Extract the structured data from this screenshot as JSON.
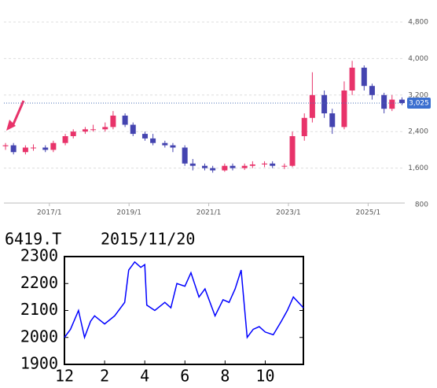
{
  "chart_data": [
    {
      "type": "candlestick",
      "x": [
        2015.9,
        2016.1,
        2016.4,
        2016.6,
        2016.9,
        2017.1,
        2017.4,
        2017.6,
        2017.9,
        2018.1,
        2018.4,
        2018.6,
        2018.9,
        2019.1,
        2019.4,
        2019.6,
        2019.9,
        2020.1,
        2020.4,
        2020.6,
        2020.9,
        2021.1,
        2021.4,
        2021.6,
        2021.9,
        2022.1,
        2022.4,
        2022.6,
        2022.9,
        2023.1,
        2023.4,
        2023.6,
        2023.9,
        2024.1,
        2024.4,
        2024.6,
        2024.9,
        2025.1,
        2025.4,
        2025.6,
        2025.85
      ],
      "open": [
        2080,
        2100,
        1950,
        2050,
        2050,
        2000,
        2150,
        2300,
        2400,
        2450,
        2450,
        2500,
        2750,
        2550,
        2350,
        2250,
        2150,
        2100,
        2050,
        1700,
        1650,
        1600,
        1550,
        1650,
        1600,
        1650,
        1680,
        1700,
        1650,
        1650,
        2300,
        2700,
        3200,
        2800,
        2500,
        3300,
        3800,
        3400,
        3200,
        2900,
        3100
      ],
      "high": [
        2150,
        2150,
        2100,
        2120,
        2100,
        2200,
        2350,
        2450,
        2500,
        2550,
        2600,
        2850,
        2800,
        2600,
        2400,
        2350,
        2200,
        2150,
        2100,
        1800,
        1700,
        1650,
        1700,
        1700,
        1700,
        1750,
        1750,
        1750,
        1700,
        2400,
        2800,
        3700,
        3300,
        2900,
        3500,
        3950,
        3850,
        3450,
        3250,
        3200,
        3150
      ],
      "low": [
        2000,
        1900,
        1900,
        1980,
        1950,
        1950,
        2100,
        2250,
        2350,
        2400,
        2400,
        2450,
        2500,
        2300,
        2200,
        2100,
        2050,
        1950,
        1650,
        1550,
        1550,
        1500,
        1520,
        1550,
        1560,
        1600,
        1620,
        1600,
        1580,
        1620,
        2200,
        2600,
        2700,
        2350,
        2450,
        3200,
        3300,
        3100,
        2800,
        2850,
        2980
      ],
      "close": [
        2100,
        1950,
        2050,
        2050,
        2000,
        2150,
        2300,
        2400,
        2450,
        2450,
        2500,
        2750,
        2550,
        2350,
        2250,
        2150,
        2100,
        2050,
        1700,
        1650,
        1600,
        1550,
        1650,
        1600,
        1650,
        1680,
        1700,
        1650,
        1650,
        2300,
        2700,
        3200,
        2800,
        2500,
        3300,
        3800,
        3400,
        3200,
        2900,
        3100,
        3025
      ],
      "up_color": "#e8336a",
      "down_color": "#4444b0",
      "xlim": [
        2015.86,
        2025.92
      ],
      "xticks": [
        {
          "value": 2017,
          "label": "2017/1"
        },
        {
          "value": 2019,
          "label": "2019/1"
        },
        {
          "value": 2021,
          "label": "2021/1"
        },
        {
          "value": 2023,
          "label": "2023/1"
        },
        {
          "value": 2025,
          "label": "2025/1"
        }
      ],
      "ylim": [
        800,
        4800
      ],
      "yticks": [
        {
          "value": 800,
          "label": "800"
        },
        {
          "value": 1600,
          "label": "1,600"
        },
        {
          "value": 2400,
          "label": "2,400"
        },
        {
          "value": 3200,
          "label": "3,200"
        },
        {
          "value": 4000,
          "label": "4,000"
        },
        {
          "value": 4800,
          "label": "4,800"
        }
      ],
      "current_price": {
        "value": 3025,
        "label": "3,025"
      },
      "grid": true
    },
    {
      "type": "line",
      "title": "6419.T",
      "subtitle": "2015/11/20",
      "series": [
        {
          "color": "#0000ff",
          "x": [
            0,
            0.3,
            0.7,
            1,
            1.3,
            1.5,
            2,
            2.5,
            3,
            3.2,
            3.5,
            3.8,
            4,
            4.1,
            4.5,
            5,
            5.3,
            5.6,
            6,
            6.3,
            6.7,
            7,
            7.5,
            7.9,
            8.2,
            8.5,
            8.8,
            9.1,
            9.4,
            9.7,
            10,
            10.4,
            10.8,
            11.1,
            11.4,
            11.9
          ],
          "values": [
            2000,
            2030,
            2100,
            2000,
            2060,
            2080,
            2050,
            2080,
            2130,
            2250,
            2280,
            2260,
            2270,
            2120,
            2100,
            2130,
            2110,
            2200,
            2190,
            2240,
            2150,
            2180,
            2080,
            2140,
            2130,
            2180,
            2250,
            2000,
            2030,
            2040,
            2020,
            2010,
            2060,
            2100,
            2150,
            2110
          ]
        }
      ],
      "xlim": [
        0,
        11.9
      ],
      "xticks": [
        {
          "value": 0,
          "label": "12"
        },
        2,
        4,
        6,
        8,
        10
      ],
      "ylim": [
        1900,
        2300
      ],
      "yticks": [
        1900,
        2000,
        2100,
        2200,
        2300
      ]
    }
  ]
}
